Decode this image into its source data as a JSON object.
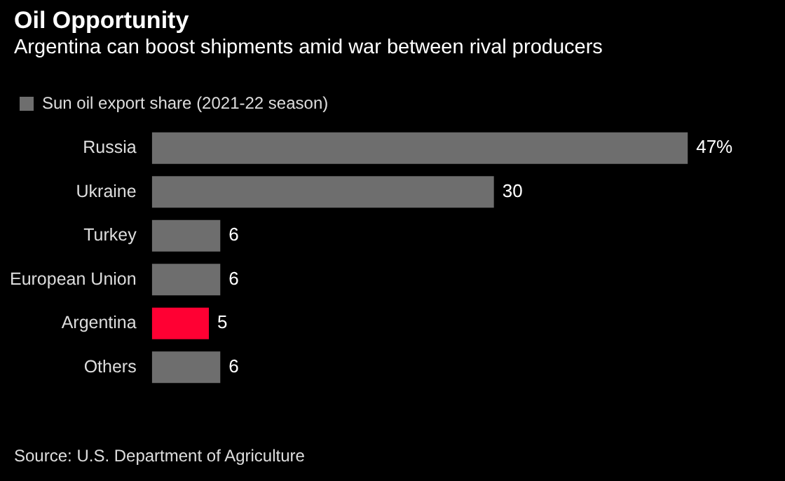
{
  "chart_data": {
    "type": "bar",
    "orientation": "horizontal",
    "title": "Oil Opportunity",
    "subtitle": "Argentina can boost shipments amid war between rival producers",
    "categories": [
      "Russia",
      "Ukraine",
      "Turkey",
      "European Union",
      "Argentina",
      "Others"
    ],
    "series": [
      {
        "name": "Sun oil export share (2021-22 season)",
        "color": "#6e6e6e",
        "colors": [
          "#6e6e6e",
          "#6e6e6e",
          "#6e6e6e",
          "#6e6e6e",
          "#ff0033",
          "#6e6e6e"
        ],
        "values": [
          47,
          30,
          6,
          6,
          5,
          6
        ],
        "value_labels": [
          "47%",
          "30",
          "6",
          "6",
          "5",
          "6"
        ]
      }
    ],
    "legend": "top left",
    "tick_labels": "y",
    "annotations": [
      "Source: U.S. Department of Agriculture"
    ]
  }
}
